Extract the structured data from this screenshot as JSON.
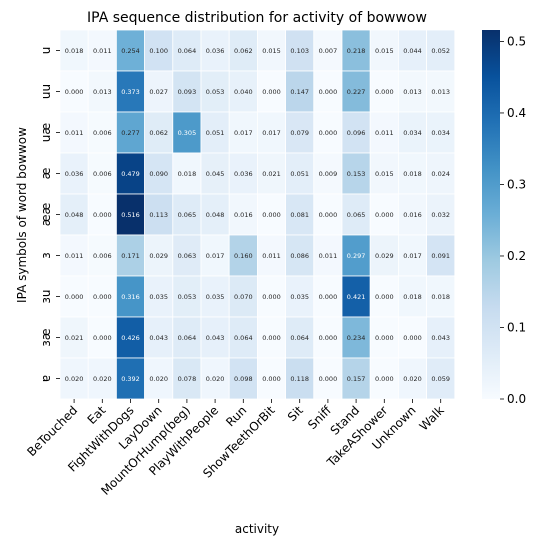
{
  "chart_data": {
    "type": "heatmap",
    "title": "IPA sequence distribution for activity of bowwow",
    "xlabel": "activity",
    "ylabel": "IPA symbols of word bowwow",
    "columns": [
      "BeTouched",
      "Eat",
      "FightWithDogs",
      "LayDown",
      "MountOrHump(beg)",
      "PlayWithPeople",
      "Run",
      "ShowTeethOrBit",
      "Sit",
      "Sniff",
      "Stand",
      "TakeAShower",
      "Unknown",
      "Walk"
    ],
    "rows": [
      "u",
      "uu",
      "uæ",
      "æ",
      "ææ",
      "ɜ",
      "ɜu",
      "ɜæ",
      "ɐ"
    ],
    "values": [
      [
        0.018,
        0.011,
        0.254,
        0.1,
        0.064,
        0.036,
        0.062,
        0.015,
        0.103,
        0.007,
        0.218,
        0.015,
        0.044,
        0.052
      ],
      [
        0.0,
        0.013,
        0.373,
        0.027,
        0.093,
        0.053,
        0.04,
        0.0,
        0.147,
        0.0,
        0.227,
        0.0,
        0.013,
        0.013
      ],
      [
        0.011,
        0.006,
        0.277,
        0.062,
        0.305,
        0.051,
        0.017,
        0.017,
        0.079,
        0.0,
        0.096,
        0.011,
        0.034,
        0.034
      ],
      [
        0.036,
        0.006,
        0.479,
        0.09,
        0.018,
        0.045,
        0.036,
        0.021,
        0.051,
        0.009,
        0.153,
        0.015,
        0.018,
        0.024
      ],
      [
        0.048,
        0.0,
        0.516,
        0.113,
        0.065,
        0.048,
        0.016,
        0.0,
        0.081,
        0.0,
        0.065,
        0.0,
        0.016,
        0.032
      ],
      [
        0.011,
        0.006,
        0.171,
        0.029,
        0.063,
        0.017,
        0.16,
        0.011,
        0.086,
        0.011,
        0.297,
        0.029,
        0.017,
        0.091
      ],
      [
        0.0,
        0.0,
        0.316,
        0.035,
        0.053,
        0.035,
        0.07,
        0.0,
        0.035,
        0.0,
        0.421,
        0.0,
        0.018,
        0.018
      ],
      [
        0.021,
        0.0,
        0.426,
        0.043,
        0.064,
        0.043,
        0.064,
        0.0,
        0.064,
        0.0,
        0.234,
        0.0,
        0.0,
        0.043
      ],
      [
        0.02,
        0.02,
        0.392,
        0.02,
        0.078,
        0.02,
        0.098,
        0.0,
        0.118,
        0.0,
        0.157,
        0.0,
        0.02,
        0.059
      ]
    ],
    "colorbar": {
      "ticks": [
        "0.0",
        "0.1",
        "0.2",
        "0.3",
        "0.4",
        "0.5"
      ],
      "range": [
        0,
        0.516
      ],
      "colormap": "Blues"
    },
    "grid": false,
    "legend": "colorbar-right"
  }
}
